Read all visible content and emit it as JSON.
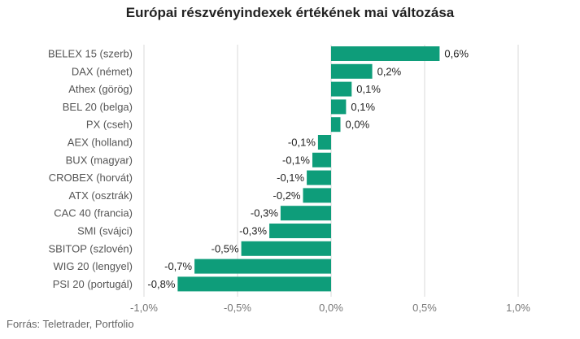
{
  "chart_data": {
    "type": "bar",
    "orientation": "horizontal",
    "title": "Európai részvényindexek értékének mai változása",
    "categories": [
      "BELEX 15 (szerb)",
      "DAX (német)",
      "Athex (görög)",
      "BEL 20 (belga)",
      "PX (cseh)",
      "AEX (holland)",
      "BUX (magyar)",
      "CROBEX (horvát)",
      "ATX (osztrák)",
      "CAC 40 (francia)",
      "SMI (svájci)",
      "SBITOP (szlovén)",
      "WIG 20 (lengyel)",
      "PSI 20 (portugál)"
    ],
    "values": [
      0.58,
      0.22,
      0.11,
      0.08,
      0.05,
      -0.07,
      -0.1,
      -0.13,
      -0.15,
      -0.27,
      -0.33,
      -0.48,
      -0.73,
      -0.82
    ],
    "value_labels": [
      "0,6%",
      "0,2%",
      "0,1%",
      "0,1%",
      "0,0%",
      "-0,1%",
      "-0,1%",
      "-0,1%",
      "-0,2%",
      "-0,3%",
      "-0,3%",
      "-0,5%",
      "-0,7%",
      "-0,8%"
    ],
    "xlim": [
      -1.0,
      1.0
    ],
    "x_ticks": [
      -1.0,
      -0.5,
      0.0,
      0.5,
      1.0
    ],
    "x_tick_labels": [
      "-1,0%",
      "-0,5%",
      "0,0%",
      "0,5%",
      "1,0%"
    ],
    "xlabel": "",
    "ylabel": "",
    "grid": true,
    "legend": "none",
    "bar_color": "#0e9d7a",
    "grid_color": "#d9d9d9"
  },
  "source": "Forrás: Teletrader, Portfolio"
}
